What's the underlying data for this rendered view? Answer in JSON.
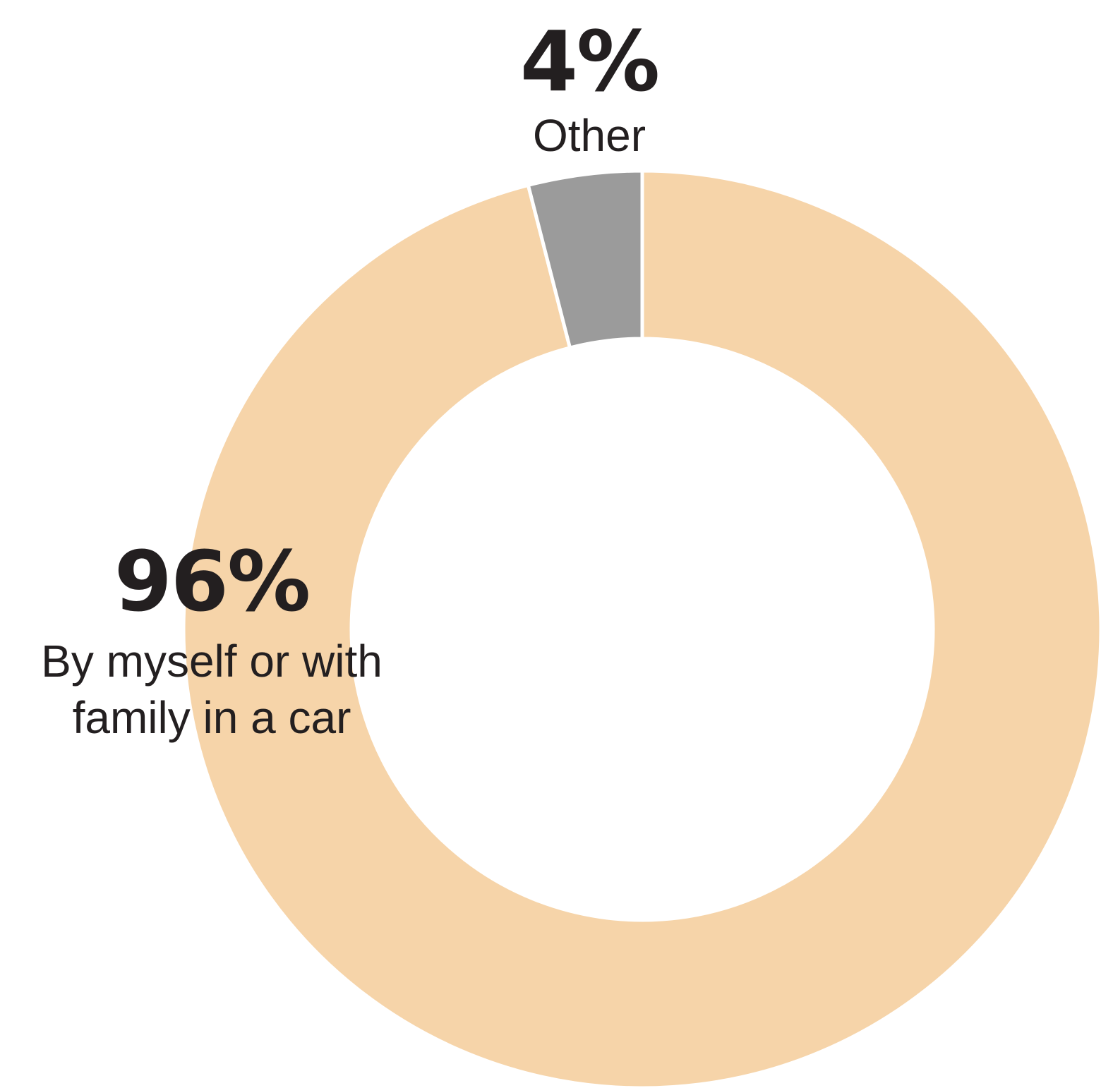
{
  "chart_data": {
    "type": "pie",
    "donut": true,
    "title": "",
    "slices": [
      {
        "label": "By myself or with family in a car",
        "value": 96,
        "value_label": "96%",
        "color": "#f6d4a9"
      },
      {
        "label": "Other",
        "value": 4,
        "value_label": "4%",
        "color": "#9b9b9b"
      }
    ],
    "separator_color": "#ffffff"
  }
}
